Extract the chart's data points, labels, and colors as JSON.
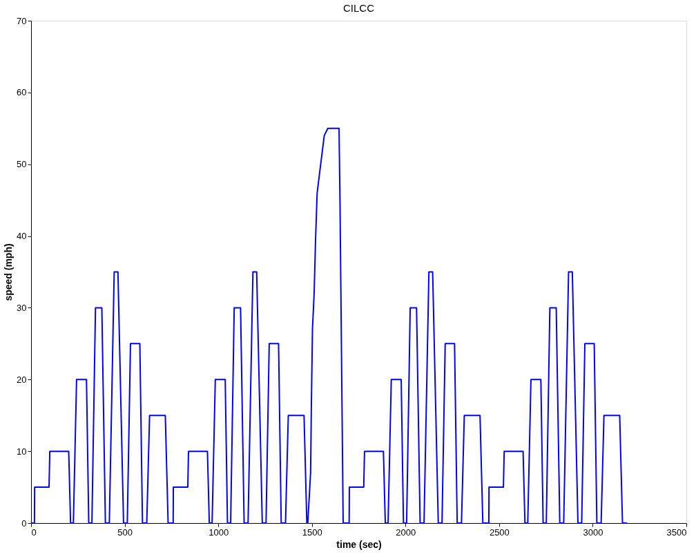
{
  "chart_data": {
    "type": "line",
    "title": "CILCC",
    "xlabel": "time (sec)",
    "ylabel": "speed (mph)",
    "xlim": [
      0,
      3500
    ],
    "xticks": [
      0,
      500,
      1000,
      1500,
      2000,
      2500,
      3000,
      3500
    ],
    "ylim": [
      0,
      70
    ],
    "yticks": [
      0,
      10,
      20,
      30,
      40,
      50,
      60,
      70
    ],
    "grid": false,
    "marker": "none",
    "line_style": "solid",
    "series": [
      {
        "color": "#0000ff",
        "x": [
          0,
          18,
          19,
          96,
          100,
          201,
          211,
          226,
          243,
          296,
          308,
          325,
          344,
          378,
          397,
          418,
          444,
          464,
          494,
          514,
          531,
          581,
          595,
          618,
          633,
          717,
          732,
          759,
          760,
          837,
          841,
          942,
          952,
          967,
          984,
          1037,
          1049,
          1066,
          1085,
          1119,
          1138,
          1159,
          1185,
          1205,
          1235,
          1255,
          1272,
          1322,
          1336,
          1359,
          1374,
          1458,
          1473,
          1478,
          1493,
          1497,
          1503,
          1512,
          1519,
          1528,
          1547,
          1566,
          1585,
          1645,
          1650,
          1667,
          1699,
          1700,
          1777,
          1781,
          1882,
          1892,
          1907,
          1924,
          1977,
          1989,
          2006,
          2025,
          2059,
          2078,
          2099,
          2125,
          2145,
          2175,
          2195,
          2212,
          2262,
          2276,
          2299,
          2314,
          2398,
          2413,
          2445,
          2446,
          2523,
          2527,
          2628,
          2638,
          2653,
          2670,
          2723,
          2735,
          2752,
          2771,
          2805,
          2824,
          2845,
          2871,
          2891,
          2921,
          2941,
          2958,
          3008,
          3022,
          3045,
          3060,
          3144,
          3159,
          3184
        ],
        "values": [
          0,
          0,
          5,
          5,
          10,
          10,
          0,
          0,
          20,
          20,
          0,
          0,
          30,
          30,
          0,
          0,
          35,
          35,
          0,
          0,
          25,
          25,
          0,
          0,
          15,
          15,
          0,
          0,
          5,
          5,
          10,
          10,
          0,
          0,
          20,
          20,
          0,
          0,
          30,
          30,
          0,
          0,
          35,
          35,
          0,
          0,
          25,
          25,
          0,
          0,
          15,
          15,
          0,
          0,
          7,
          16,
          27,
          32,
          39,
          46,
          50,
          54,
          55,
          55,
          45,
          0,
          0,
          5,
          5,
          10,
          10,
          0,
          0,
          20,
          20,
          0,
          0,
          30,
          30,
          0,
          0,
          35,
          35,
          0,
          0,
          25,
          25,
          0,
          0,
          15,
          15,
          0,
          0,
          5,
          5,
          10,
          10,
          0,
          0,
          20,
          20,
          0,
          0,
          30,
          30,
          0,
          0,
          35,
          35,
          0,
          0,
          25,
          25,
          0,
          0,
          15,
          15,
          0,
          0
        ]
      }
    ]
  }
}
